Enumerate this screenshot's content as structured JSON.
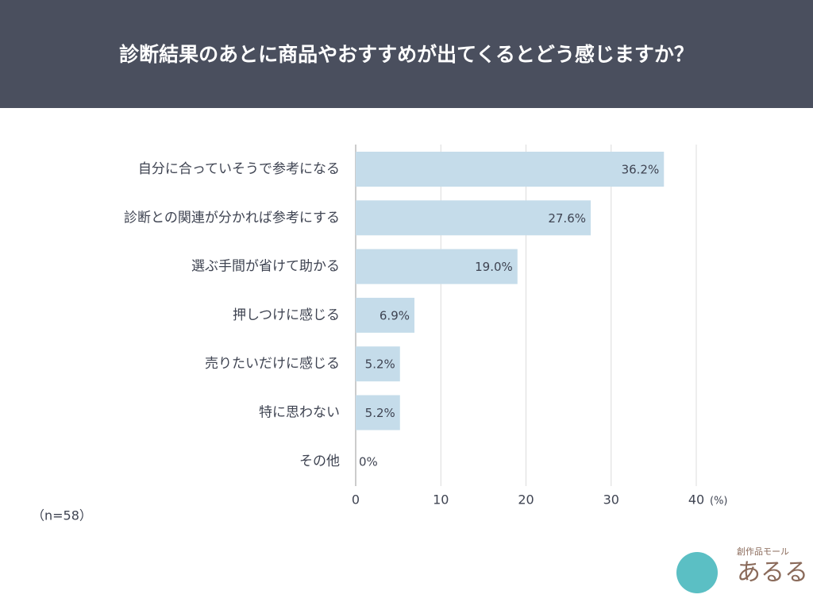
{
  "chart_data": {
    "type": "hbar",
    "title": "診断結果のあとに商品やおすすめが出てくるとどう感じますか？",
    "categories": [
      "自分に合っていそうで参考になる",
      "診断との関連が分かれば参考にする",
      "選ぶ手間が省けて助かる",
      "押しつけに感じる",
      "売りたいだけに感じる",
      "特に思わない",
      "その他"
    ],
    "values": [
      36.2,
      27.6,
      19.0,
      6.9,
      5.2,
      5.2,
      0
    ],
    "value_labels": [
      "36.2%",
      "27.6%",
      "19.0%",
      "6.9%",
      "5.2%",
      "5.2%",
      "0%"
    ],
    "color": "#c5dcea",
    "xlim": [
      0,
      40
    ],
    "xticks": [
      0,
      10,
      20,
      30,
      40
    ],
    "x_unit": "(%)",
    "note": "（n=58）",
    "grid": true
  },
  "logo": {
    "tagline": "創作品モール",
    "name": "あるる"
  }
}
